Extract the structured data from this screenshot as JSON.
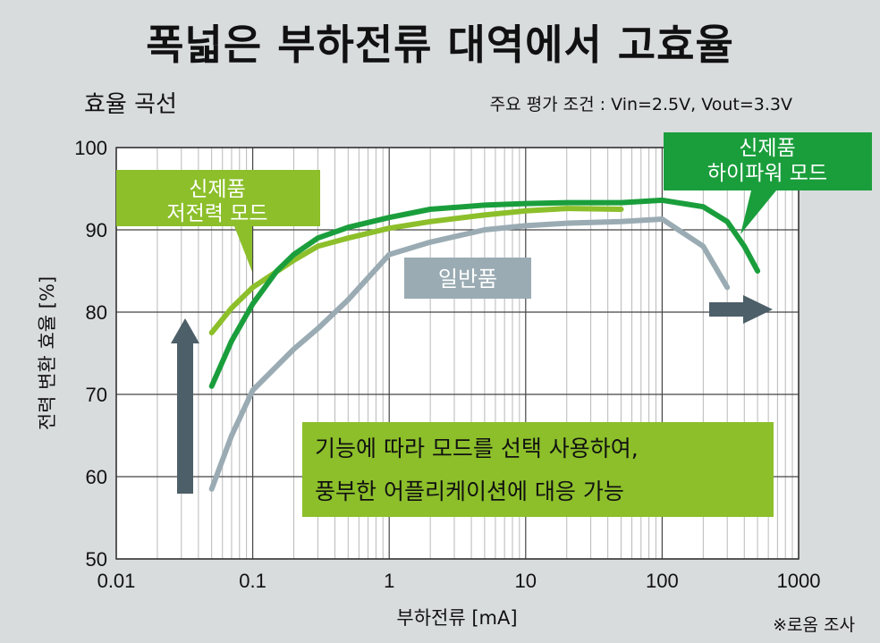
{
  "title": "폭넓은 부하전류 대역에서 고효율",
  "subtitle": "효율 곡선",
  "conditions": "주요 평가 조건 :  Vin=2.5V, Vout=3.3V",
  "source": "※로옴 조사",
  "colors": {
    "new_high_power": "#1a9e3c",
    "new_low_power": "#8cbf2a",
    "general": "#9aabb3",
    "arrow": "#4d5f68",
    "background": "#d9dcdd",
    "plot_background": "#ffffff"
  },
  "callouts": {
    "low_power": [
      "신제품",
      "저전력 모드"
    ],
    "high_power": [
      "신제품",
      "하이파워 모드"
    ],
    "general": "일반품",
    "note": [
      "기능에 따라 모드를 선택 사용하여,",
      "풍부한 어플리케이션에 대응 가능"
    ]
  },
  "chart_data": {
    "type": "line",
    "xlabel": "부하전류 [mA]",
    "ylabel": "전력 변환 효율 [%]",
    "xscale": "log",
    "xlim": [
      0.01,
      1000
    ],
    "ylim": [
      50,
      100
    ],
    "x_ticks": [
      "0.01",
      "0.1",
      "1",
      "10",
      "100",
      "1000"
    ],
    "y_ticks": [
      "50",
      "60",
      "70",
      "80",
      "90",
      "100"
    ],
    "grid": true,
    "series": [
      {
        "name": "신제품 하이파워 모드",
        "color": "#1a9e3c",
        "x": [
          0.05,
          0.07,
          0.1,
          0.15,
          0.2,
          0.3,
          0.5,
          1,
          2,
          5,
          10,
          20,
          50,
          100,
          200,
          300,
          400,
          500
        ],
        "y": [
          71,
          76.5,
          81,
          85,
          87,
          89,
          90.3,
          91.5,
          92.5,
          93,
          93.2,
          93.3,
          93.3,
          93.6,
          92.8,
          91,
          88,
          85
        ]
      },
      {
        "name": "신제품 저전력 모드",
        "color": "#8cbf2a",
        "x": [
          0.05,
          0.07,
          0.1,
          0.2,
          0.3,
          0.5,
          1,
          2,
          5,
          10,
          20,
          50
        ],
        "y": [
          77.5,
          80.5,
          83,
          86.3,
          88,
          89,
          90.2,
          91,
          91.8,
          92.3,
          92.6,
          92.5
        ]
      },
      {
        "name": "일반품",
        "color": "#9aabb3",
        "x": [
          0.05,
          0.07,
          0.1,
          0.2,
          0.3,
          0.5,
          1,
          2,
          5,
          10,
          20,
          50,
          100,
          200,
          300
        ],
        "y": [
          58.5,
          65,
          70.5,
          75.5,
          78,
          81.5,
          87,
          88.5,
          90,
          90.5,
          90.8,
          91,
          91.3,
          88,
          83
        ]
      }
    ]
  }
}
